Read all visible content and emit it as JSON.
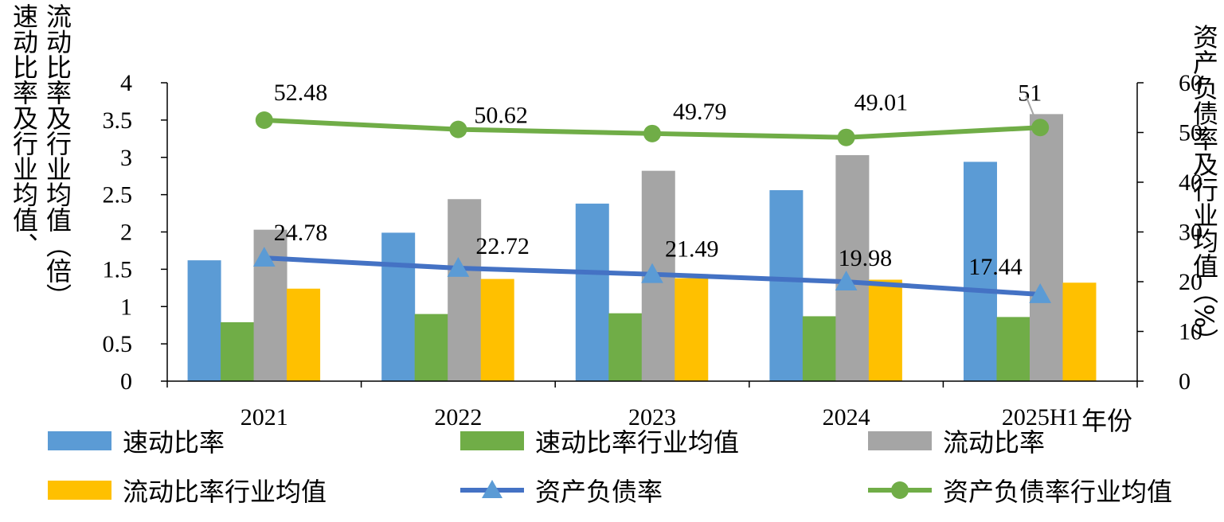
{
  "chart_data": {
    "type": "bar",
    "categories": [
      "2021",
      "2022",
      "2023",
      "2024",
      "2025H1"
    ],
    "xlabel": "年份",
    "ylabel_left": "速动比率及行业均值、流动比率及行业均值（倍）",
    "ylabel_right": "资产负债率及行业均值（%）",
    "ylim_left": [
      0,
      4
    ],
    "ylim_right": [
      0,
      60
    ],
    "yticks_left": [
      "0",
      "0.5",
      "1",
      "1.5",
      "2",
      "2.5",
      "3",
      "3.5",
      "4"
    ],
    "yticks_right": [
      "0",
      "10",
      "20",
      "30",
      "40",
      "50",
      "60"
    ],
    "grid": false,
    "legend_position": "bottom",
    "series": [
      {
        "name": "速动比率",
        "type": "bar",
        "axis": "left",
        "color": "#5B9BD5",
        "values": [
          1.62,
          1.99,
          2.38,
          2.56,
          2.94
        ]
      },
      {
        "name": "速动比率行业均值",
        "type": "bar",
        "axis": "left",
        "color": "#70AD47",
        "values": [
          0.79,
          0.9,
          0.91,
          0.87,
          0.86
        ]
      },
      {
        "name": "流动比率",
        "type": "bar",
        "axis": "left",
        "color": "#A5A5A5",
        "values": [
          2.03,
          2.44,
          2.82,
          3.03,
          3.58
        ]
      },
      {
        "name": "流动比率行业均值",
        "type": "bar",
        "axis": "left",
        "color": "#FFC000",
        "values": [
          1.24,
          1.37,
          1.38,
          1.36,
          1.32
        ]
      },
      {
        "name": "资产负债率",
        "type": "line",
        "marker": "triangle",
        "axis": "right",
        "color": "#4472C4",
        "values": [
          24.78,
          22.72,
          21.49,
          19.98,
          17.44
        ],
        "labels": [
          "24.78",
          "22.72",
          "21.49",
          "19.98",
          "17.44"
        ]
      },
      {
        "name": "资产负债率行业均值",
        "type": "line",
        "marker": "circle",
        "axis": "right",
        "color": "#70AD47",
        "values": [
          52.48,
          50.62,
          49.79,
          49.01,
          51
        ],
        "labels": [
          "52.48",
          "50.62",
          "49.79",
          "49.01",
          "51"
        ]
      }
    ]
  }
}
